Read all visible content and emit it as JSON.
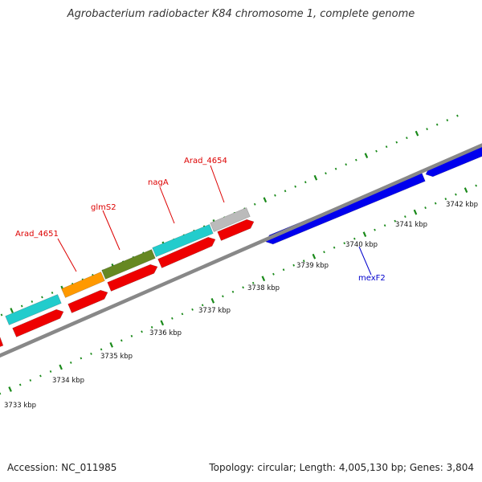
{
  "title": "Agrobacterium radiobacter K84 chromosome 1, complete genome",
  "accession_text": "Accession: NC_011985",
  "topology_text": "Topology: circular; Length: 4,005,130 bp; Genes: 3,804",
  "colors": {
    "backbone": "#888888",
    "ticks": "#1a8a1a",
    "gene_red": "#ee0000",
    "gene_cyan": "#22cccc",
    "gene_orange": "#ff9900",
    "gene_olive": "#668822",
    "gene_gray": "#bbbbbb",
    "gene_blue": "#0000ee",
    "label_red": "#dd0000",
    "label_blue": "#0000cc"
  },
  "kbp_labels": [
    "3733 kbp",
    "3734 kbp",
    "3735 kbp",
    "3736 kbp",
    "3737 kbp",
    "3738 kbp",
    "3739 kbp",
    "3740 kbp",
    "3741 kbp",
    "3742 kbp"
  ],
  "gene_labels": [
    {
      "id": "arad4651",
      "text": "Arad_4651",
      "color_key": "label_red"
    },
    {
      "id": "glms2",
      "text": "glmS2",
      "color_key": "label_red"
    },
    {
      "id": "naga",
      "text": "nagA",
      "color_key": "label_red"
    },
    {
      "id": "arad4654",
      "text": "Arad_4654",
      "color_key": "label_red"
    },
    {
      "id": "mexf2",
      "text": "mexF2",
      "color_key": "label_blue"
    }
  ]
}
